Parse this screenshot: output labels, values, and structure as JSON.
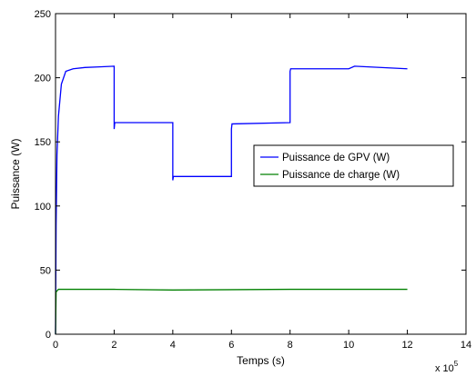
{
  "chart_data": {
    "type": "line",
    "xlabel": "Temps (s)",
    "ylabel": "Puissance (W)",
    "x_multiplier": "x 10",
    "x_exponent": "5",
    "xlim": [
      0,
      14
    ],
    "ylim": [
      0,
      250
    ],
    "xticks": [
      0,
      2,
      4,
      6,
      8,
      10,
      12,
      14
    ],
    "yticks": [
      0,
      50,
      100,
      150,
      200,
      250
    ],
    "grid": false,
    "legend_position": "right",
    "series": [
      {
        "name": "Puissance de GPV (W)",
        "color": "#0000ff",
        "x": [
          0,
          0.02,
          0.05,
          0.1,
          0.2,
          0.35,
          0.6,
          1.0,
          1.5,
          2.0,
          2.0,
          2.02,
          4.0,
          4.0,
          4.02,
          6.0,
          6.0,
          6.02,
          8.0,
          8.0,
          8.02,
          10.0,
          10.2,
          12.0
        ],
        "y": [
          0,
          85,
          140,
          170,
          195,
          205,
          207,
          208,
          208.5,
          209,
          160,
          165,
          165,
          120,
          123,
          123,
          160,
          164,
          165,
          205,
          207,
          207,
          209,
          207
        ]
      },
      {
        "name": "Puissance de charge (W)",
        "color": "#008000",
        "x": [
          0,
          0.02,
          0.1,
          2.0,
          4.0,
          8.0,
          12.0
        ],
        "y": [
          0,
          33,
          35,
          35,
          34.5,
          35,
          35
        ]
      }
    ]
  }
}
